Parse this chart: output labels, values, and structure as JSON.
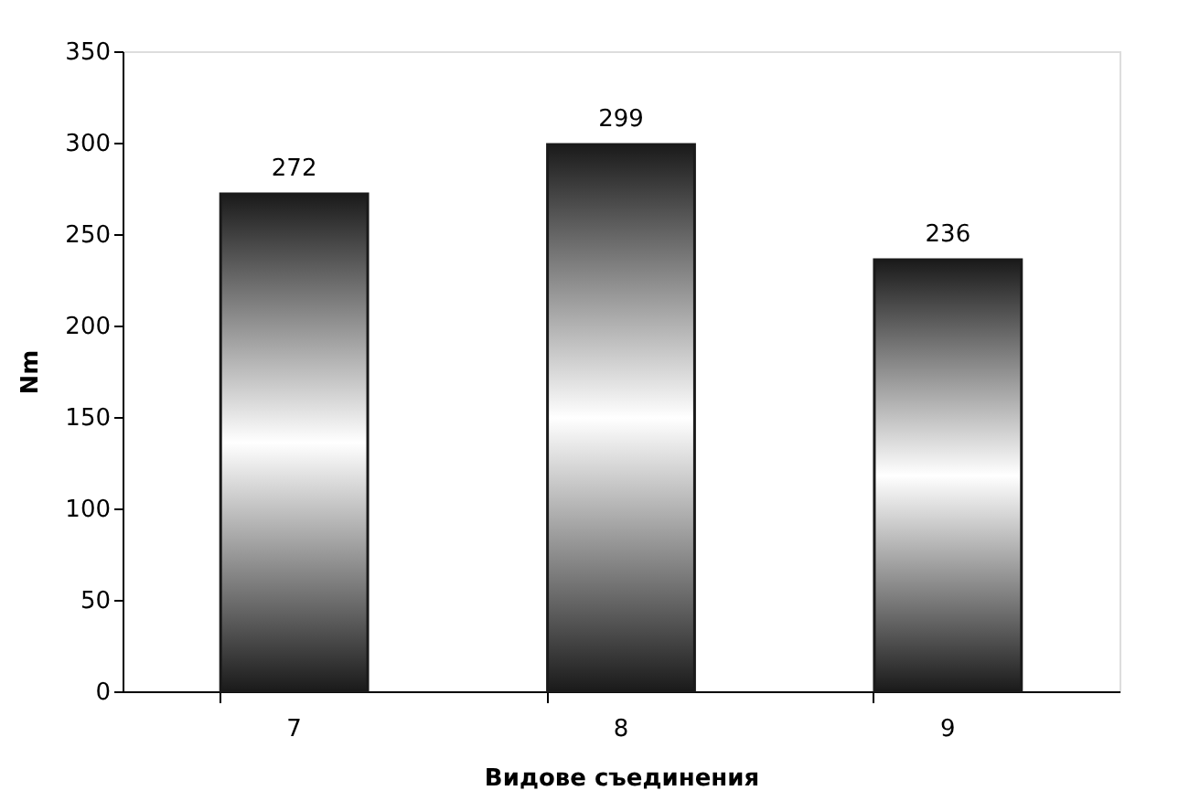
{
  "chart_data": {
    "type": "bar",
    "xlabel": "Видове съединения",
    "ylabel": "Nm",
    "categories": [
      "7",
      "8",
      "9"
    ],
    "values": [
      272,
      299,
      236
    ],
    "color": "#1a1a1a",
    "ylim": [
      0,
      350
    ],
    "yticks": [
      0,
      50,
      100,
      150,
      200,
      250,
      300,
      350
    ],
    "data_labels": true,
    "grid": false
  }
}
